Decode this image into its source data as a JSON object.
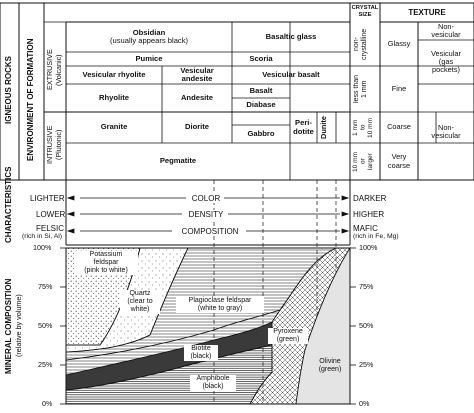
{
  "side_labels": {
    "igneous_rocks": "IGNEOUS ROCKS",
    "environment": "ENVIRONMENT OF FORMATION",
    "extrusive": "EXTRUSIVE",
    "extrusive_sub": "(Volcanic)",
    "intrusive": "INTRUSIVE",
    "intrusive_sub": "(Plutonic)",
    "characteristics": "CHARACTERISTICS",
    "mineral_composition": "MINERAL COMPOSITION",
    "relative_by_volume": "(relative by volume)"
  },
  "headers": {
    "crystal": "CRYSTAL",
    "size": "SIZE",
    "texture": "TEXTURE"
  },
  "rocks": {
    "obsidian": "Obsidian",
    "obsidian_note": "(usually appears black)",
    "basaltic_glass": "Basaltic glass",
    "pumice": "Pumice",
    "scoria": "Scoria",
    "vesicular_rhyolite": "Vesicular rhyolite",
    "vesicular_andesite_1": "Vesicular",
    "vesicular_andesite_2": "andesite",
    "vesicular_basalt": "Vesicular basalt",
    "rhyolite": "Rhyolite",
    "andesite": "Andesite",
    "basalt": "Basalt",
    "diabase": "Diabase",
    "granite": "Granite",
    "diorite": "Diorite",
    "gabbro": "Gabbro",
    "peridotite_1": "Peri-",
    "peridotite_2": "dotite",
    "dunite": "Dunite",
    "pegmatite": "Pegmatite"
  },
  "crystal_size": {
    "noncrystalline_1": "non-",
    "noncrystalline_2": "crystalline",
    "less_than_1mm": "less than",
    "less_than_1mm_b": "1 mm",
    "one_to_ten_1": "1 mm",
    "one_to_ten_2": "to",
    "one_to_ten_3": "10 mm",
    "ten_or_larger_1": "10 mm",
    "ten_or_larger_2": "or",
    "ten_or_larger_3": "larger"
  },
  "texture": {
    "glassy": "Glassy",
    "nonvesicular_1": "Non-",
    "nonvesicular_2": "vesicular",
    "vesicular_1": "Vesicular",
    "vesicular_2": "(gas",
    "vesicular_3": "pockets)",
    "fine": "Fine",
    "coarse": "Coarse",
    "very_coarse_1": "Very",
    "very_coarse_2": "coarse",
    "nonvesicular_b1": "Non-",
    "nonvesicular_b2": "vesicular"
  },
  "characteristics": {
    "lighter": "LIGHTER",
    "darker": "DARKER",
    "color": "COLOR",
    "lower": "LOWER",
    "higher": "HIGHER",
    "density": "DENSITY",
    "felsic": "FELSIC",
    "felsic_note": "(rich in Si, Al)",
    "mafic": "MAFIC",
    "mafic_note": "(rich in Fe, Mg)",
    "composition": "COMPOSITION"
  },
  "percent_ticks": [
    "100%",
    "75%",
    "50%",
    "25%",
    "0%"
  ],
  "minerals": {
    "potassium_1": "Potassium",
    "potassium_2": "feldspar",
    "potassium_3": "(pink to white)",
    "quartz_1": "Quartz",
    "quartz_2": "(clear to",
    "quartz_3": "white)",
    "plagioclase_1": "Plagioclase feldspar",
    "plagioclase_2": "(white to gray)",
    "biotite_1": "Biotite",
    "biotite_2": "(black)",
    "amphibole_1": "Amphibole",
    "amphibole_2": "(black)",
    "pyroxene_1": "Pyroxene",
    "pyroxene_2": "(green)",
    "olivine_1": "Olivine",
    "olivine_2": "(green)"
  }
}
